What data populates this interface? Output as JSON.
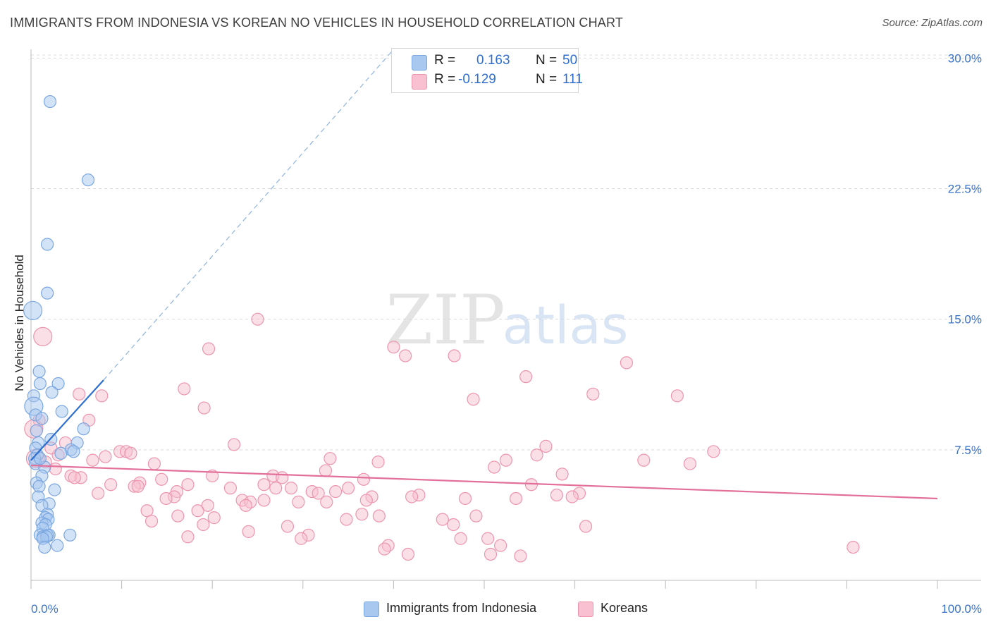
{
  "title": "IMMIGRANTS FROM INDONESIA VS KOREAN NO VEHICLES IN HOUSEHOLD CORRELATION CHART",
  "source": "Source: ZipAtlas.com",
  "watermark": {
    "zip": "ZIP",
    "atlas": "atlas"
  },
  "legend": {
    "rows": [
      {
        "r_label": "R =",
        "r_value": "0.163",
        "n_label": "N =",
        "n_value": "50",
        "color": "#a8c8f0",
        "stroke": "#7aa7e0"
      },
      {
        "r_label": "R =",
        "r_value": "-0.129",
        "n_label": "N =",
        "n_value": "111",
        "color": "#f8c0d0",
        "stroke": "#ec95ae"
      }
    ]
  },
  "bottom_legend": [
    {
      "label": "Immigrants from Indonesia",
      "color": "#a8c8f0",
      "stroke": "#7aa7e0"
    },
    {
      "label": "Koreans",
      "color": "#f8c0d0",
      "stroke": "#ec95ae"
    }
  ],
  "chart_data": {
    "type": "scatter",
    "title": "IMMIGRANTS FROM INDONESIA VS KOREAN NO VEHICLES IN HOUSEHOLD CORRELATION CHART",
    "xlabel": "",
    "ylabel": "No Vehicles in Household",
    "xlim": [
      0,
      100
    ],
    "ylim": [
      0,
      30.5
    ],
    "x_tick_labels": [
      "0.0%",
      "100.0%"
    ],
    "y_ticks": [
      7.5,
      15.0,
      22.5,
      30.0
    ],
    "y_tick_labels": [
      "7.5%",
      "15.0%",
      "22.5%",
      "30.0%"
    ],
    "grid": true,
    "series": [
      {
        "name": "Immigrants from Indonesia",
        "color": "#a8c8f0",
        "stroke": "#7aa7e0",
        "trend_color": "#2f6fcf",
        "trend": {
          "x0": 0,
          "y0": 6.9,
          "x1": 8.0,
          "y1": 11.5,
          "dashed_to_x": 40,
          "dashed_to_y": 30.5
        },
        "points": [
          {
            "x": 2.1,
            "y": 27.5
          },
          {
            "x": 6.3,
            "y": 23.0
          },
          {
            "x": 1.8,
            "y": 19.3
          },
          {
            "x": 1.8,
            "y": 16.5
          },
          {
            "x": 0.2,
            "y": 15.5,
            "big": true
          },
          {
            "x": 0.9,
            "y": 12.0
          },
          {
            "x": 3.0,
            "y": 11.3
          },
          {
            "x": 1.0,
            "y": 11.3
          },
          {
            "x": 2.3,
            "y": 10.8
          },
          {
            "x": 0.3,
            "y": 10.6
          },
          {
            "x": 0.3,
            "y": 10.0,
            "big": true
          },
          {
            "x": 3.4,
            "y": 9.7
          },
          {
            "x": 0.5,
            "y": 9.5
          },
          {
            "x": 1.2,
            "y": 9.3
          },
          {
            "x": 5.8,
            "y": 8.7
          },
          {
            "x": 0.6,
            "y": 8.6
          },
          {
            "x": 2.2,
            "y": 8.1
          },
          {
            "x": 5.1,
            "y": 7.9
          },
          {
            "x": 0.8,
            "y": 7.9
          },
          {
            "x": 0.5,
            "y": 7.6
          },
          {
            "x": 4.4,
            "y": 7.5
          },
          {
            "x": 4.7,
            "y": 7.4
          },
          {
            "x": 3.3,
            "y": 7.3
          },
          {
            "x": 0.7,
            "y": 7.2
          },
          {
            "x": 0.4,
            "y": 7.0
          },
          {
            "x": 0.5,
            "y": 6.7
          },
          {
            "x": 1.5,
            "y": 6.5
          },
          {
            "x": 1.2,
            "y": 6.0
          },
          {
            "x": 0.6,
            "y": 5.6
          },
          {
            "x": 0.9,
            "y": 5.4
          },
          {
            "x": 2.6,
            "y": 5.2
          },
          {
            "x": 0.8,
            "y": 4.8
          },
          {
            "x": 2.0,
            "y": 4.4
          },
          {
            "x": 1.2,
            "y": 4.3
          },
          {
            "x": 1.8,
            "y": 3.8
          },
          {
            "x": 1.6,
            "y": 3.6
          },
          {
            "x": 1.9,
            "y": 3.5
          },
          {
            "x": 1.2,
            "y": 3.3
          },
          {
            "x": 1.6,
            "y": 3.2
          },
          {
            "x": 1.3,
            "y": 3.0
          },
          {
            "x": 1.0,
            "y": 2.6
          },
          {
            "x": 1.3,
            "y": 2.5
          },
          {
            "x": 2.0,
            "y": 2.6
          },
          {
            "x": 1.8,
            "y": 2.6
          },
          {
            "x": 4.3,
            "y": 2.6
          },
          {
            "x": 1.7,
            "y": 2.5
          },
          {
            "x": 1.3,
            "y": 2.4
          },
          {
            "x": 1.5,
            "y": 1.9
          },
          {
            "x": 2.9,
            "y": 2.0
          },
          {
            "x": 1.0,
            "y": 7.0
          }
        ]
      },
      {
        "name": "Koreans",
        "color": "#f8c0d0",
        "stroke": "#ec95ae",
        "trend_color": "#e2709a",
        "trend": {
          "x0": 0,
          "y0": 6.6,
          "x1": 100,
          "y1": 4.7
        },
        "points": [
          {
            "x": 1.3,
            "y": 14.0,
            "big": true
          },
          {
            "x": 25.0,
            "y": 15.0
          },
          {
            "x": 19.6,
            "y": 13.3
          },
          {
            "x": 40.0,
            "y": 13.4
          },
          {
            "x": 41.3,
            "y": 12.9
          },
          {
            "x": 46.7,
            "y": 12.9
          },
          {
            "x": 65.7,
            "y": 12.5
          },
          {
            "x": 54.6,
            "y": 11.7
          },
          {
            "x": 16.9,
            "y": 11.0
          },
          {
            "x": 5.3,
            "y": 10.7
          },
          {
            "x": 7.8,
            "y": 10.6
          },
          {
            "x": 62.0,
            "y": 10.7
          },
          {
            "x": 71.3,
            "y": 10.6
          },
          {
            "x": 48.8,
            "y": 10.4
          },
          {
            "x": 19.1,
            "y": 9.9
          },
          {
            "x": 0.9,
            "y": 9.2
          },
          {
            "x": 6.4,
            "y": 9.2
          },
          {
            "x": 0.3,
            "y": 8.7,
            "big": true
          },
          {
            "x": 3.8,
            "y": 7.9
          },
          {
            "x": 22.4,
            "y": 7.8
          },
          {
            "x": 56.8,
            "y": 7.7
          },
          {
            "x": 75.3,
            "y": 7.4
          },
          {
            "x": 9.8,
            "y": 7.4
          },
          {
            "x": 10.5,
            "y": 7.4
          },
          {
            "x": 11.0,
            "y": 7.3
          },
          {
            "x": 8.2,
            "y": 7.1
          },
          {
            "x": 3.0,
            "y": 7.2
          },
          {
            "x": 33.0,
            "y": 7.0
          },
          {
            "x": 55.8,
            "y": 7.2
          },
          {
            "x": 67.6,
            "y": 6.9
          },
          {
            "x": 52.4,
            "y": 6.9
          },
          {
            "x": 6.8,
            "y": 6.9
          },
          {
            "x": 38.3,
            "y": 6.8
          },
          {
            "x": 13.6,
            "y": 6.7
          },
          {
            "x": 72.7,
            "y": 6.7
          },
          {
            "x": 51.1,
            "y": 6.5
          },
          {
            "x": 32.5,
            "y": 6.3
          },
          {
            "x": 58.6,
            "y": 6.1
          },
          {
            "x": 20.0,
            "y": 6.0
          },
          {
            "x": 26.7,
            "y": 6.0
          },
          {
            "x": 27.7,
            "y": 5.9
          },
          {
            "x": 4.4,
            "y": 6.0
          },
          {
            "x": 5.5,
            "y": 5.9
          },
          {
            "x": 4.8,
            "y": 5.9
          },
          {
            "x": 36.7,
            "y": 5.8
          },
          {
            "x": 14.4,
            "y": 5.8
          },
          {
            "x": 12.0,
            "y": 5.6
          },
          {
            "x": 8.8,
            "y": 5.5
          },
          {
            "x": 17.3,
            "y": 5.5
          },
          {
            "x": 25.7,
            "y": 5.5
          },
          {
            "x": 11.4,
            "y": 5.4
          },
          {
            "x": 11.8,
            "y": 5.4
          },
          {
            "x": 22.0,
            "y": 5.3
          },
          {
            "x": 27.0,
            "y": 5.3
          },
          {
            "x": 28.7,
            "y": 5.3
          },
          {
            "x": 35.0,
            "y": 5.3
          },
          {
            "x": 55.2,
            "y": 5.5
          },
          {
            "x": 16.1,
            "y": 5.1
          },
          {
            "x": 7.4,
            "y": 5.0
          },
          {
            "x": 31.0,
            "y": 5.1
          },
          {
            "x": 31.7,
            "y": 5.0
          },
          {
            "x": 33.6,
            "y": 5.1
          },
          {
            "x": 15.8,
            "y": 4.8
          },
          {
            "x": 14.9,
            "y": 4.7
          },
          {
            "x": 42.8,
            "y": 4.9
          },
          {
            "x": 42.0,
            "y": 4.8
          },
          {
            "x": 60.5,
            "y": 5.0
          },
          {
            "x": 58.0,
            "y": 4.9
          },
          {
            "x": 59.7,
            "y": 4.8
          },
          {
            "x": 37.6,
            "y": 4.8
          },
          {
            "x": 47.9,
            "y": 4.7
          },
          {
            "x": 53.5,
            "y": 4.7
          },
          {
            "x": 23.3,
            "y": 4.6
          },
          {
            "x": 37.0,
            "y": 4.6
          },
          {
            "x": 24.2,
            "y": 4.5
          },
          {
            "x": 29.5,
            "y": 4.5
          },
          {
            "x": 32.6,
            "y": 4.5
          },
          {
            "x": 19.5,
            "y": 4.3
          },
          {
            "x": 23.7,
            "y": 4.3
          },
          {
            "x": 12.8,
            "y": 4.0
          },
          {
            "x": 18.4,
            "y": 4.0
          },
          {
            "x": 16.2,
            "y": 3.7
          },
          {
            "x": 20.2,
            "y": 3.6
          },
          {
            "x": 36.5,
            "y": 3.8
          },
          {
            "x": 38.4,
            "y": 3.7
          },
          {
            "x": 45.4,
            "y": 3.5
          },
          {
            "x": 49.1,
            "y": 3.7
          },
          {
            "x": 34.8,
            "y": 3.5
          },
          {
            "x": 13.3,
            "y": 3.4
          },
          {
            "x": 19.0,
            "y": 3.2
          },
          {
            "x": 28.3,
            "y": 3.1
          },
          {
            "x": 46.6,
            "y": 3.2
          },
          {
            "x": 61.2,
            "y": 3.1
          },
          {
            "x": 24.0,
            "y": 2.8
          },
          {
            "x": 30.6,
            "y": 2.6
          },
          {
            "x": 17.3,
            "y": 2.5
          },
          {
            "x": 29.8,
            "y": 2.4
          },
          {
            "x": 47.4,
            "y": 2.4
          },
          {
            "x": 50.4,
            "y": 2.4
          },
          {
            "x": 51.8,
            "y": 2.0
          },
          {
            "x": 39.4,
            "y": 2.0
          },
          {
            "x": 39.0,
            "y": 1.8
          },
          {
            "x": 41.6,
            "y": 1.5
          },
          {
            "x": 50.7,
            "y": 1.5
          },
          {
            "x": 54.0,
            "y": 1.4
          },
          {
            "x": 90.7,
            "y": 1.9
          },
          {
            "x": 0.5,
            "y": 7.0,
            "big": true
          },
          {
            "x": 1.6,
            "y": 6.8
          },
          {
            "x": 2.2,
            "y": 7.6
          },
          {
            "x": 2.7,
            "y": 6.4
          },
          {
            "x": 25.7,
            "y": 4.6
          }
        ]
      }
    ]
  }
}
